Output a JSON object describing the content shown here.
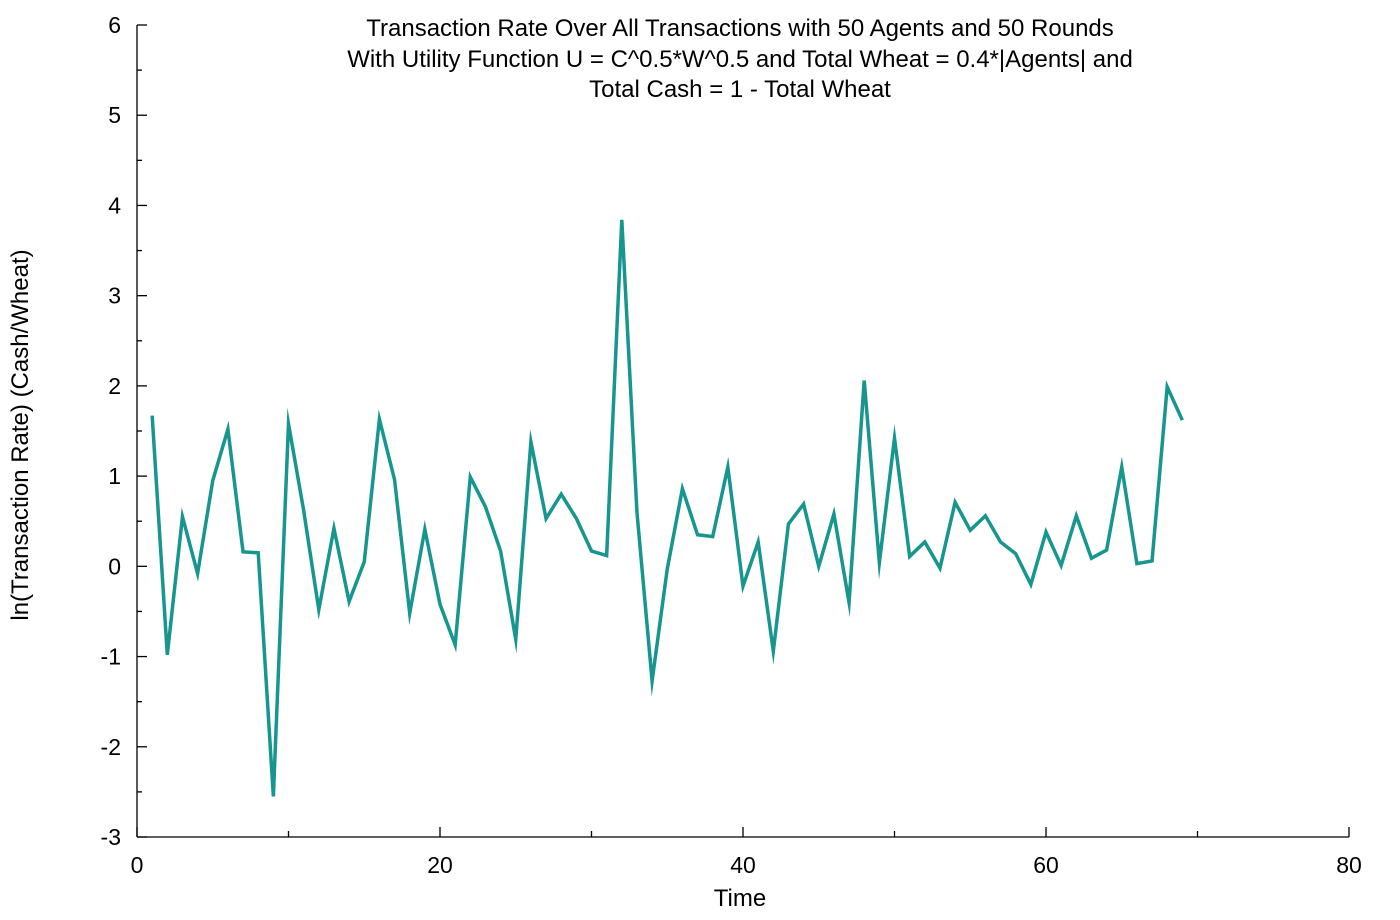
{
  "chart_data": {
    "type": "line",
    "title_lines": [
      "Transaction Rate Over All Transactions with 50 Agents and 50 Rounds",
      "With Utility Function U = C^0.5*W^0.5 and Total Wheat = 0.4*|Agents| and",
      "Total Cash = 1 - Total Wheat"
    ],
    "xlabel": "Time",
    "ylabel": "ln(Transaction Rate) (Cash/Wheat)",
    "xlim": [
      0,
      80
    ],
    "ylim": [
      -3,
      6
    ],
    "x_ticks": [
      0,
      20,
      40,
      60,
      80
    ],
    "x_tick_labels": [
      "0",
      "20",
      "40",
      "60",
      "80"
    ],
    "x_minor_ticks": [
      10,
      30,
      50,
      70
    ],
    "y_ticks": [
      -3,
      -2,
      -1,
      0,
      1,
      2,
      3,
      4,
      5,
      6
    ],
    "y_tick_labels": [
      "-3",
      "-2",
      "-1",
      "0",
      "1",
      "2",
      "3",
      "4",
      "5",
      "6"
    ],
    "y_minor_step": 0.5,
    "grid": false,
    "series": [
      {
        "color": "#16968f",
        "x": [
          1,
          2,
          3,
          4,
          5,
          6,
          7,
          8,
          9,
          10,
          11,
          12,
          13,
          14,
          15,
          16,
          17,
          18,
          19,
          20,
          21,
          22,
          23,
          24,
          25,
          26,
          27,
          28,
          29,
          30,
          31,
          32,
          33,
          34,
          35,
          36,
          37,
          38,
          39,
          40,
          41,
          42,
          43,
          44,
          45,
          46,
          47,
          48,
          49,
          50,
          51,
          52,
          53,
          54,
          55,
          56,
          57,
          58,
          59,
          60,
          61,
          62,
          63,
          64,
          65,
          66,
          67,
          68,
          69
        ],
        "values": [
          1.67,
          -0.98,
          0.55,
          -0.08,
          0.95,
          1.52,
          0.16,
          0.15,
          -2.55,
          1.58,
          0.62,
          -0.48,
          0.42,
          -0.39,
          0.05,
          1.63,
          0.96,
          -0.52,
          0.41,
          -0.42,
          -0.87,
          0.99,
          0.66,
          0.17,
          -0.81,
          1.38,
          0.53,
          0.8,
          0.53,
          0.17,
          0.12,
          3.84,
          0.6,
          -1.27,
          -0.03,
          0.86,
          0.35,
          0.33,
          1.1,
          -0.22,
          0.27,
          -0.94,
          0.47,
          0.69,
          0.0,
          0.58,
          -0.4,
          2.06,
          0.04,
          1.42,
          0.11,
          0.27,
          -0.02,
          0.71,
          0.4,
          0.56,
          0.27,
          0.14,
          -0.2,
          0.38,
          0.01,
          0.56,
          0.09,
          0.18,
          1.1,
          0.03,
          0.06,
          1.99,
          1.62
        ]
      }
    ]
  }
}
